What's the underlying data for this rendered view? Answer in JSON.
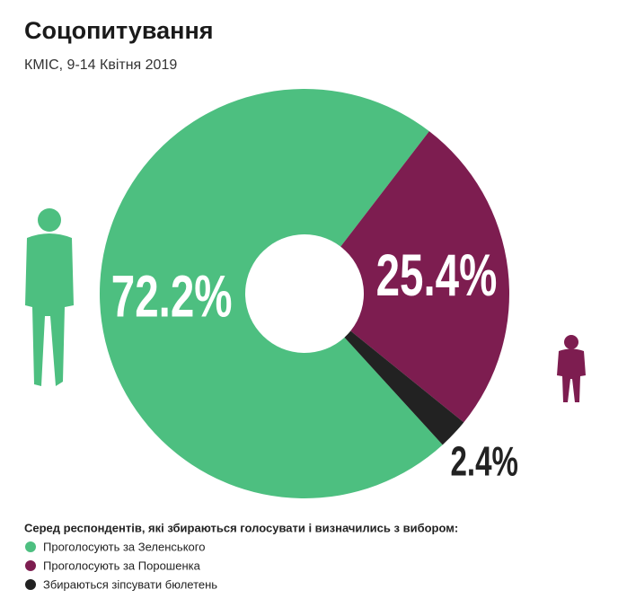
{
  "chart_data": {
    "type": "pie",
    "title": "Соцопитування",
    "subtitle": "КМІС, 9-14 Квітня 2019",
    "legend_title": "Серед респондентів, які збираються голосувати і визначились з вибором:",
    "categories": [
      "Проголосують за Зеленського",
      "Проголосують за Порошенка",
      "Збираються зіпсувати бюлетень"
    ],
    "values": [
      72.2,
      25.4,
      2.4
    ],
    "value_labels": [
      "72.2%",
      "25.4%",
      "2.4%"
    ],
    "colors": [
      "#4dbf80",
      "#7d1d50",
      "#222222"
    ],
    "donut": true
  }
}
